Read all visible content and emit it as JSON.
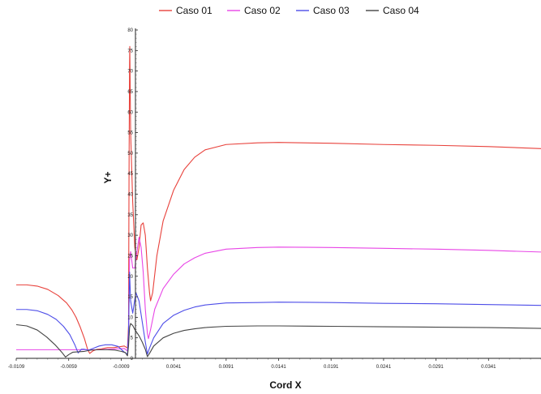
{
  "chart_data": {
    "type": "line",
    "title": "",
    "xlabel": "Cord X",
    "ylabel": "Y+",
    "xlim": [
      -0.0109,
      0.0391
    ],
    "ylim": [
      0,
      80
    ],
    "grid": false,
    "legend_position": "top",
    "x_tick_labels": [
      "-0.0109",
      "-0.0059",
      "-0.0009",
      "0.0041",
      "0.0091",
      "0.0141",
      "0.0191",
      "0.0241",
      "0.0291",
      "0.0341"
    ],
    "x_ticks": [
      -0.0109,
      -0.0059,
      -0.0009,
      0.0041,
      0.0091,
      0.0141,
      0.0191,
      0.0241,
      0.0291,
      0.0341
    ],
    "y_ticks": [
      0,
      5,
      10,
      15,
      20,
      25,
      30,
      35,
      40,
      45,
      50,
      55,
      60,
      65,
      70,
      75,
      80
    ],
    "series": [
      {
        "name": "Caso 01",
        "color": "#e8413b",
        "points": [
          [
            -0.0109,
            17.9
          ],
          [
            -0.0099,
            17.9
          ],
          [
            -0.0089,
            17.6
          ],
          [
            -0.0079,
            16.8
          ],
          [
            -0.0069,
            15.3
          ],
          [
            -0.0061,
            13.5
          ],
          [
            -0.0056,
            11.8
          ],
          [
            -0.0052,
            10.0
          ],
          [
            -0.0048,
            7.6
          ],
          [
            -0.0044,
            4.8
          ],
          [
            -0.0041,
            2.2
          ],
          [
            -0.0039,
            1.2
          ],
          [
            -0.0036,
            1.8
          ],
          [
            -0.0032,
            2.2
          ],
          [
            -0.0028,
            2.3
          ],
          [
            -0.0022,
            2.6
          ],
          [
            -0.0016,
            2.6
          ],
          [
            -0.0011,
            2.8
          ],
          [
            -0.0006,
            3.0
          ],
          [
            -0.0003,
            2.5
          ],
          [
            -0.0002,
            8.0
          ],
          [
            -0.00015,
            45.0
          ],
          [
            -0.0001,
            72.0
          ],
          [
            -8e-05,
            76.0
          ],
          [
            0.0,
            55.0
          ],
          [
            0.0002,
            38.0
          ],
          [
            0.0004,
            27.0
          ],
          [
            0.0006,
            24.0
          ],
          [
            0.0008,
            27.0
          ],
          [
            0.001,
            32.5
          ],
          [
            0.0012,
            33.0
          ],
          [
            0.0014,
            30.0
          ],
          [
            0.0016,
            22.0
          ],
          [
            0.0018,
            16.0
          ],
          [
            0.0019,
            14.0
          ],
          [
            0.0021,
            16.0
          ],
          [
            0.0025,
            25.0
          ],
          [
            0.0031,
            33.5
          ],
          [
            0.0041,
            41.0
          ],
          [
            0.0051,
            46.0
          ],
          [
            0.0061,
            49.0
          ],
          [
            0.0071,
            50.8
          ],
          [
            0.0091,
            52.1
          ],
          [
            0.0121,
            52.5
          ],
          [
            0.0141,
            52.6
          ],
          [
            0.0191,
            52.4
          ],
          [
            0.0241,
            52.1
          ],
          [
            0.0291,
            51.9
          ],
          [
            0.0341,
            51.6
          ],
          [
            0.0391,
            51.1
          ]
        ]
      },
      {
        "name": "Caso 02",
        "color": "#e845e6",
        "points": [
          [
            -0.0109,
            2.1
          ],
          [
            -0.003,
            2.1
          ],
          [
            -0.002,
            2.2
          ],
          [
            -0.0011,
            2.3
          ],
          [
            -0.0006,
            2.4
          ],
          [
            -0.0003,
            1.8
          ],
          [
            -0.0002,
            6.0
          ],
          [
            -0.0001,
            24.0
          ],
          [
            0.0,
            26.0
          ],
          [
            0.0002,
            22.0
          ],
          [
            0.0004,
            22.0
          ],
          [
            0.0006,
            26.0
          ],
          [
            0.0008,
            29.5
          ],
          [
            0.001,
            27.0
          ],
          [
            0.0012,
            21.0
          ],
          [
            0.0014,
            12.0
          ],
          [
            0.0016,
            6.0
          ],
          [
            0.0017,
            4.8
          ],
          [
            0.0019,
            7.0
          ],
          [
            0.0023,
            12.0
          ],
          [
            0.0031,
            17.0
          ],
          [
            0.0041,
            20.5
          ],
          [
            0.0051,
            23.0
          ],
          [
            0.0061,
            24.5
          ],
          [
            0.0071,
            25.6
          ],
          [
            0.0091,
            26.6
          ],
          [
            0.0121,
            27.0
          ],
          [
            0.0141,
            27.1
          ],
          [
            0.0191,
            27.0
          ],
          [
            0.0241,
            26.8
          ],
          [
            0.0291,
            26.6
          ],
          [
            0.0341,
            26.3
          ],
          [
            0.0391,
            25.9
          ]
        ]
      },
      {
        "name": "Caso 03",
        "color": "#4d4de8",
        "points": [
          [
            -0.0109,
            11.9
          ],
          [
            -0.0099,
            11.9
          ],
          [
            -0.0089,
            11.6
          ],
          [
            -0.0079,
            10.7
          ],
          [
            -0.0071,
            9.5
          ],
          [
            -0.0064,
            7.8
          ],
          [
            -0.0058,
            5.8
          ],
          [
            -0.0053,
            3.2
          ],
          [
            -0.005,
            1.3
          ],
          [
            -0.0047,
            2.2
          ],
          [
            -0.0044,
            2.2
          ],
          [
            -0.004,
            2.0
          ],
          [
            -0.0035,
            2.5
          ],
          [
            -0.003,
            3.0
          ],
          [
            -0.0024,
            3.3
          ],
          [
            -0.0018,
            3.3
          ],
          [
            -0.0012,
            2.9
          ],
          [
            -0.0006,
            1.5
          ],
          [
            -0.0003,
            1.0
          ],
          [
            -0.0002,
            6.0
          ],
          [
            -0.0001,
            21.0
          ],
          [
            0.0,
            14.0
          ],
          [
            0.0002,
            11.0
          ],
          [
            0.0005,
            16.0
          ],
          [
            0.0008,
            14.0
          ],
          [
            0.0011,
            9.0
          ],
          [
            0.0014,
            4.0
          ],
          [
            0.0016,
            1.0
          ],
          [
            0.0018,
            2.5
          ],
          [
            0.0022,
            5.0
          ],
          [
            0.0031,
            8.5
          ],
          [
            0.0041,
            10.5
          ],
          [
            0.0051,
            11.7
          ],
          [
            0.0061,
            12.5
          ],
          [
            0.0071,
            13.0
          ],
          [
            0.0091,
            13.5
          ],
          [
            0.0121,
            13.6
          ],
          [
            0.0141,
            13.7
          ],
          [
            0.0191,
            13.6
          ],
          [
            0.0241,
            13.4
          ],
          [
            0.0291,
            13.3
          ],
          [
            0.0341,
            13.1
          ],
          [
            0.0391,
            12.9
          ]
        ]
      },
      {
        "name": "Caso 04",
        "color": "#444444",
        "points": [
          [
            -0.0109,
            8.2
          ],
          [
            -0.0099,
            7.9
          ],
          [
            -0.0089,
            6.9
          ],
          [
            -0.008,
            5.2
          ],
          [
            -0.0072,
            3.3
          ],
          [
            -0.0065,
            1.3
          ],
          [
            -0.0062,
            0.3
          ],
          [
            -0.0059,
            0.9
          ],
          [
            -0.0055,
            1.5
          ],
          [
            -0.005,
            1.6
          ],
          [
            -0.0044,
            1.7
          ],
          [
            -0.0038,
            2.0
          ],
          [
            -0.003,
            2.1
          ],
          [
            -0.0022,
            2.1
          ],
          [
            -0.0015,
            2.0
          ],
          [
            -0.0009,
            1.7
          ],
          [
            -0.0005,
            1.4
          ],
          [
            -0.0003,
            0.6
          ],
          [
            -0.0002,
            3.0
          ],
          [
            -0.0001,
            7.5
          ],
          [
            0.0,
            8.5
          ],
          [
            0.0002,
            8.0
          ],
          [
            0.0004,
            7.0
          ],
          [
            0.0008,
            5.5
          ],
          [
            0.0011,
            4.0
          ],
          [
            0.0014,
            2.2
          ],
          [
            0.0016,
            0.4
          ],
          [
            0.0018,
            1.2
          ],
          [
            0.0022,
            3.0
          ],
          [
            0.0031,
            5.0
          ],
          [
            0.0041,
            6.1
          ],
          [
            0.0051,
            6.8
          ],
          [
            0.0061,
            7.2
          ],
          [
            0.0071,
            7.5
          ],
          [
            0.0091,
            7.8
          ],
          [
            0.0121,
            7.9
          ],
          [
            0.0141,
            7.9
          ],
          [
            0.0191,
            7.8
          ],
          [
            0.0241,
            7.7
          ],
          [
            0.0291,
            7.6
          ],
          [
            0.0341,
            7.5
          ],
          [
            0.0391,
            7.3
          ]
        ]
      }
    ]
  }
}
